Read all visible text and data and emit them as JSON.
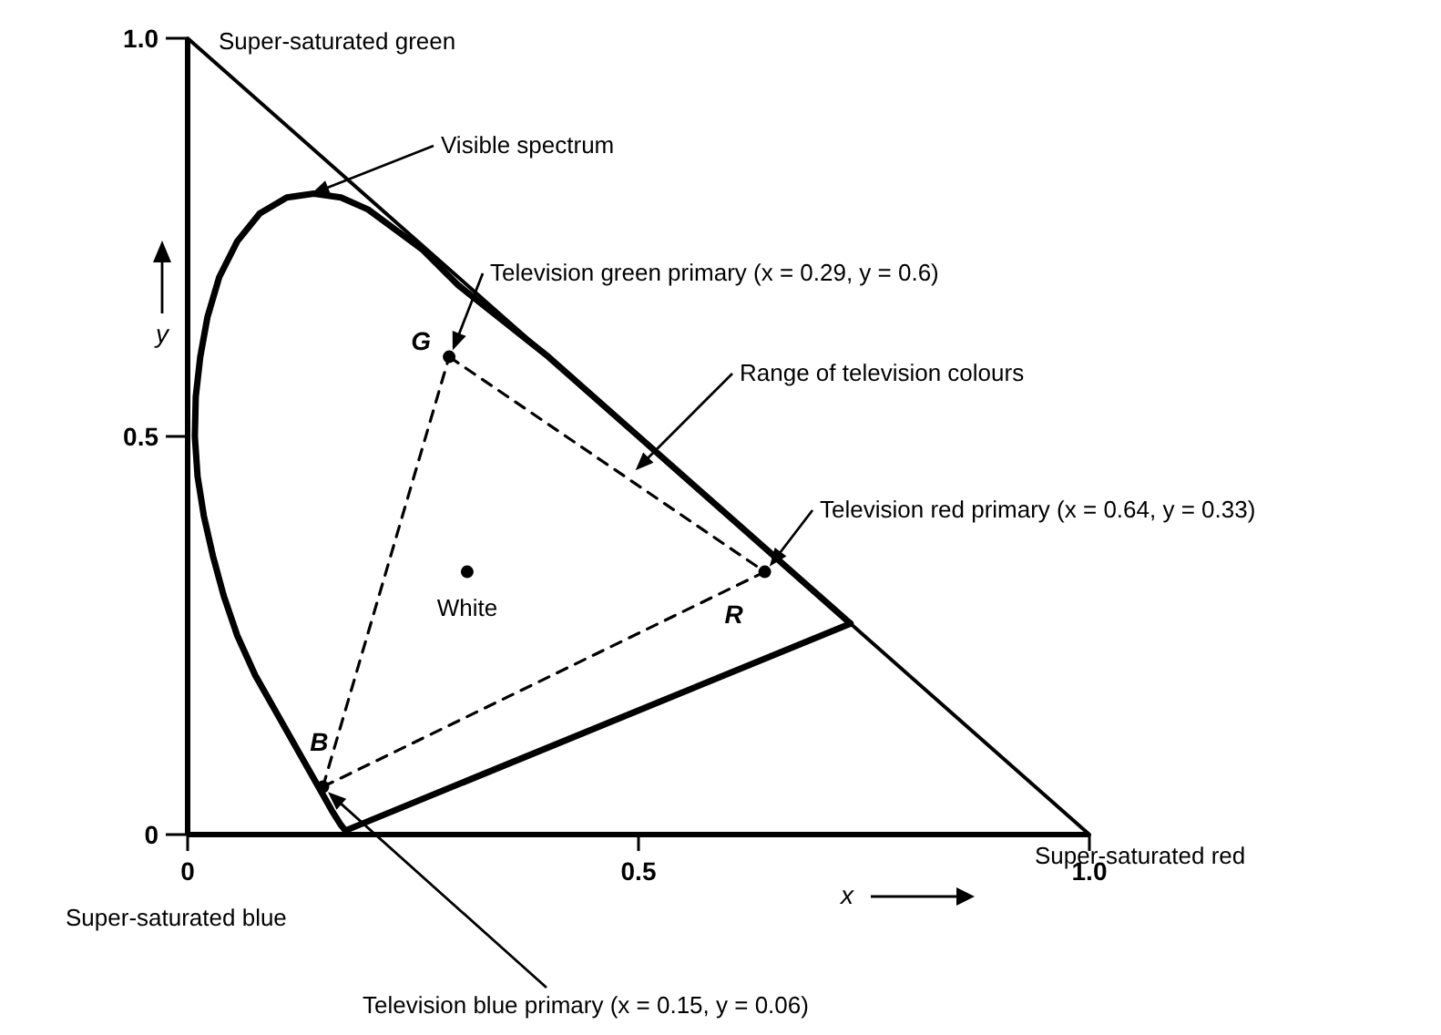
{
  "chart_data": {
    "type": "line",
    "xlabel": "x",
    "ylabel": "y",
    "xlim": [
      0,
      1
    ],
    "ylim": [
      0,
      1
    ],
    "xticks": [
      0,
      0.5,
      {
        "value": 1,
        "label": "1.0"
      }
    ],
    "yticks": [
      0,
      0.5,
      {
        "value": 1,
        "label": "1.0"
      }
    ],
    "grid": false,
    "series": [
      {
        "color": "#000000",
        "x": [
          0,
          1
        ],
        "values": [
          1,
          0
        ],
        "line_style": "solid",
        "marker": "none"
      },
      {
        "color": "#000000",
        "x": [
          0.175,
          0.17,
          0.16,
          0.145,
          0.125,
          0.1,
          0.075,
          0.055,
          0.04,
          0.028,
          0.018,
          0.011,
          0.008,
          0.009,
          0.014,
          0.022,
          0.035,
          0.055,
          0.08,
          0.11,
          0.14,
          0.17,
          0.2,
          0.23,
          0.26,
          0.3,
          0.4,
          0.5,
          0.6,
          0.735
        ],
        "values": [
          0.005,
          0.012,
          0.03,
          0.06,
          0.1,
          0.15,
          0.2,
          0.25,
          0.3,
          0.35,
          0.4,
          0.45,
          0.5,
          0.55,
          0.6,
          0.65,
          0.7,
          0.745,
          0.78,
          0.8,
          0.805,
          0.8,
          0.785,
          0.76,
          0.735,
          0.69,
          0.6,
          0.5,
          0.4,
          0.265
        ],
        "line_style": "solid",
        "marker": "none"
      },
      {
        "color": "#000000",
        "x": [
          0.175,
          0.735
        ],
        "values": [
          0.005,
          0.265
        ],
        "line_style": "solid",
        "marker": "none"
      },
      {
        "color": "#000000",
        "x": [
          0.29,
          0.64
        ],
        "values": [
          0.6,
          0.33
        ],
        "line_style": "dashed",
        "marker": "none"
      },
      {
        "color": "#000000",
        "x": [
          0.15,
          0.64
        ],
        "values": [
          0.06,
          0.33
        ],
        "line_style": "dashed",
        "marker": "none"
      },
      {
        "color": "#000000",
        "x": [
          0.15,
          0.29
        ],
        "values": [
          0.06,
          0.6
        ],
        "line_style": "dashed",
        "marker": "none"
      },
      {
        "type": "scatter",
        "color": "#000000",
        "x": [
          0.29,
          0.64,
          0.15,
          0.31
        ],
        "values": [
          0.6,
          0.33,
          0.06,
          0.33
        ],
        "marker": "circle"
      }
    ],
    "annotations": [
      {
        "text": "Super-saturated green",
        "x": 0,
        "y": 1
      },
      "Visible spectrum",
      "Television green primary (x = 0.29, y = 0.6)",
      "Range of television colours",
      "Television red primary (x = 0.64, y = 0.33)",
      {
        "text": "Super-saturated red",
        "x": 1,
        "y": 0
      },
      "Super-saturated blue",
      "Television blue primary (x = 0.15, y = 0.06)",
      {
        "text": "G",
        "x": 0.29,
        "y": 0.6
      },
      {
        "text": "R",
        "x": 0.64,
        "y": 0.33
      },
      {
        "text": "B",
        "x": 0.15,
        "y": 0.06
      },
      {
        "text": "White",
        "x": 0.31,
        "y": 0.33
      }
    ]
  }
}
